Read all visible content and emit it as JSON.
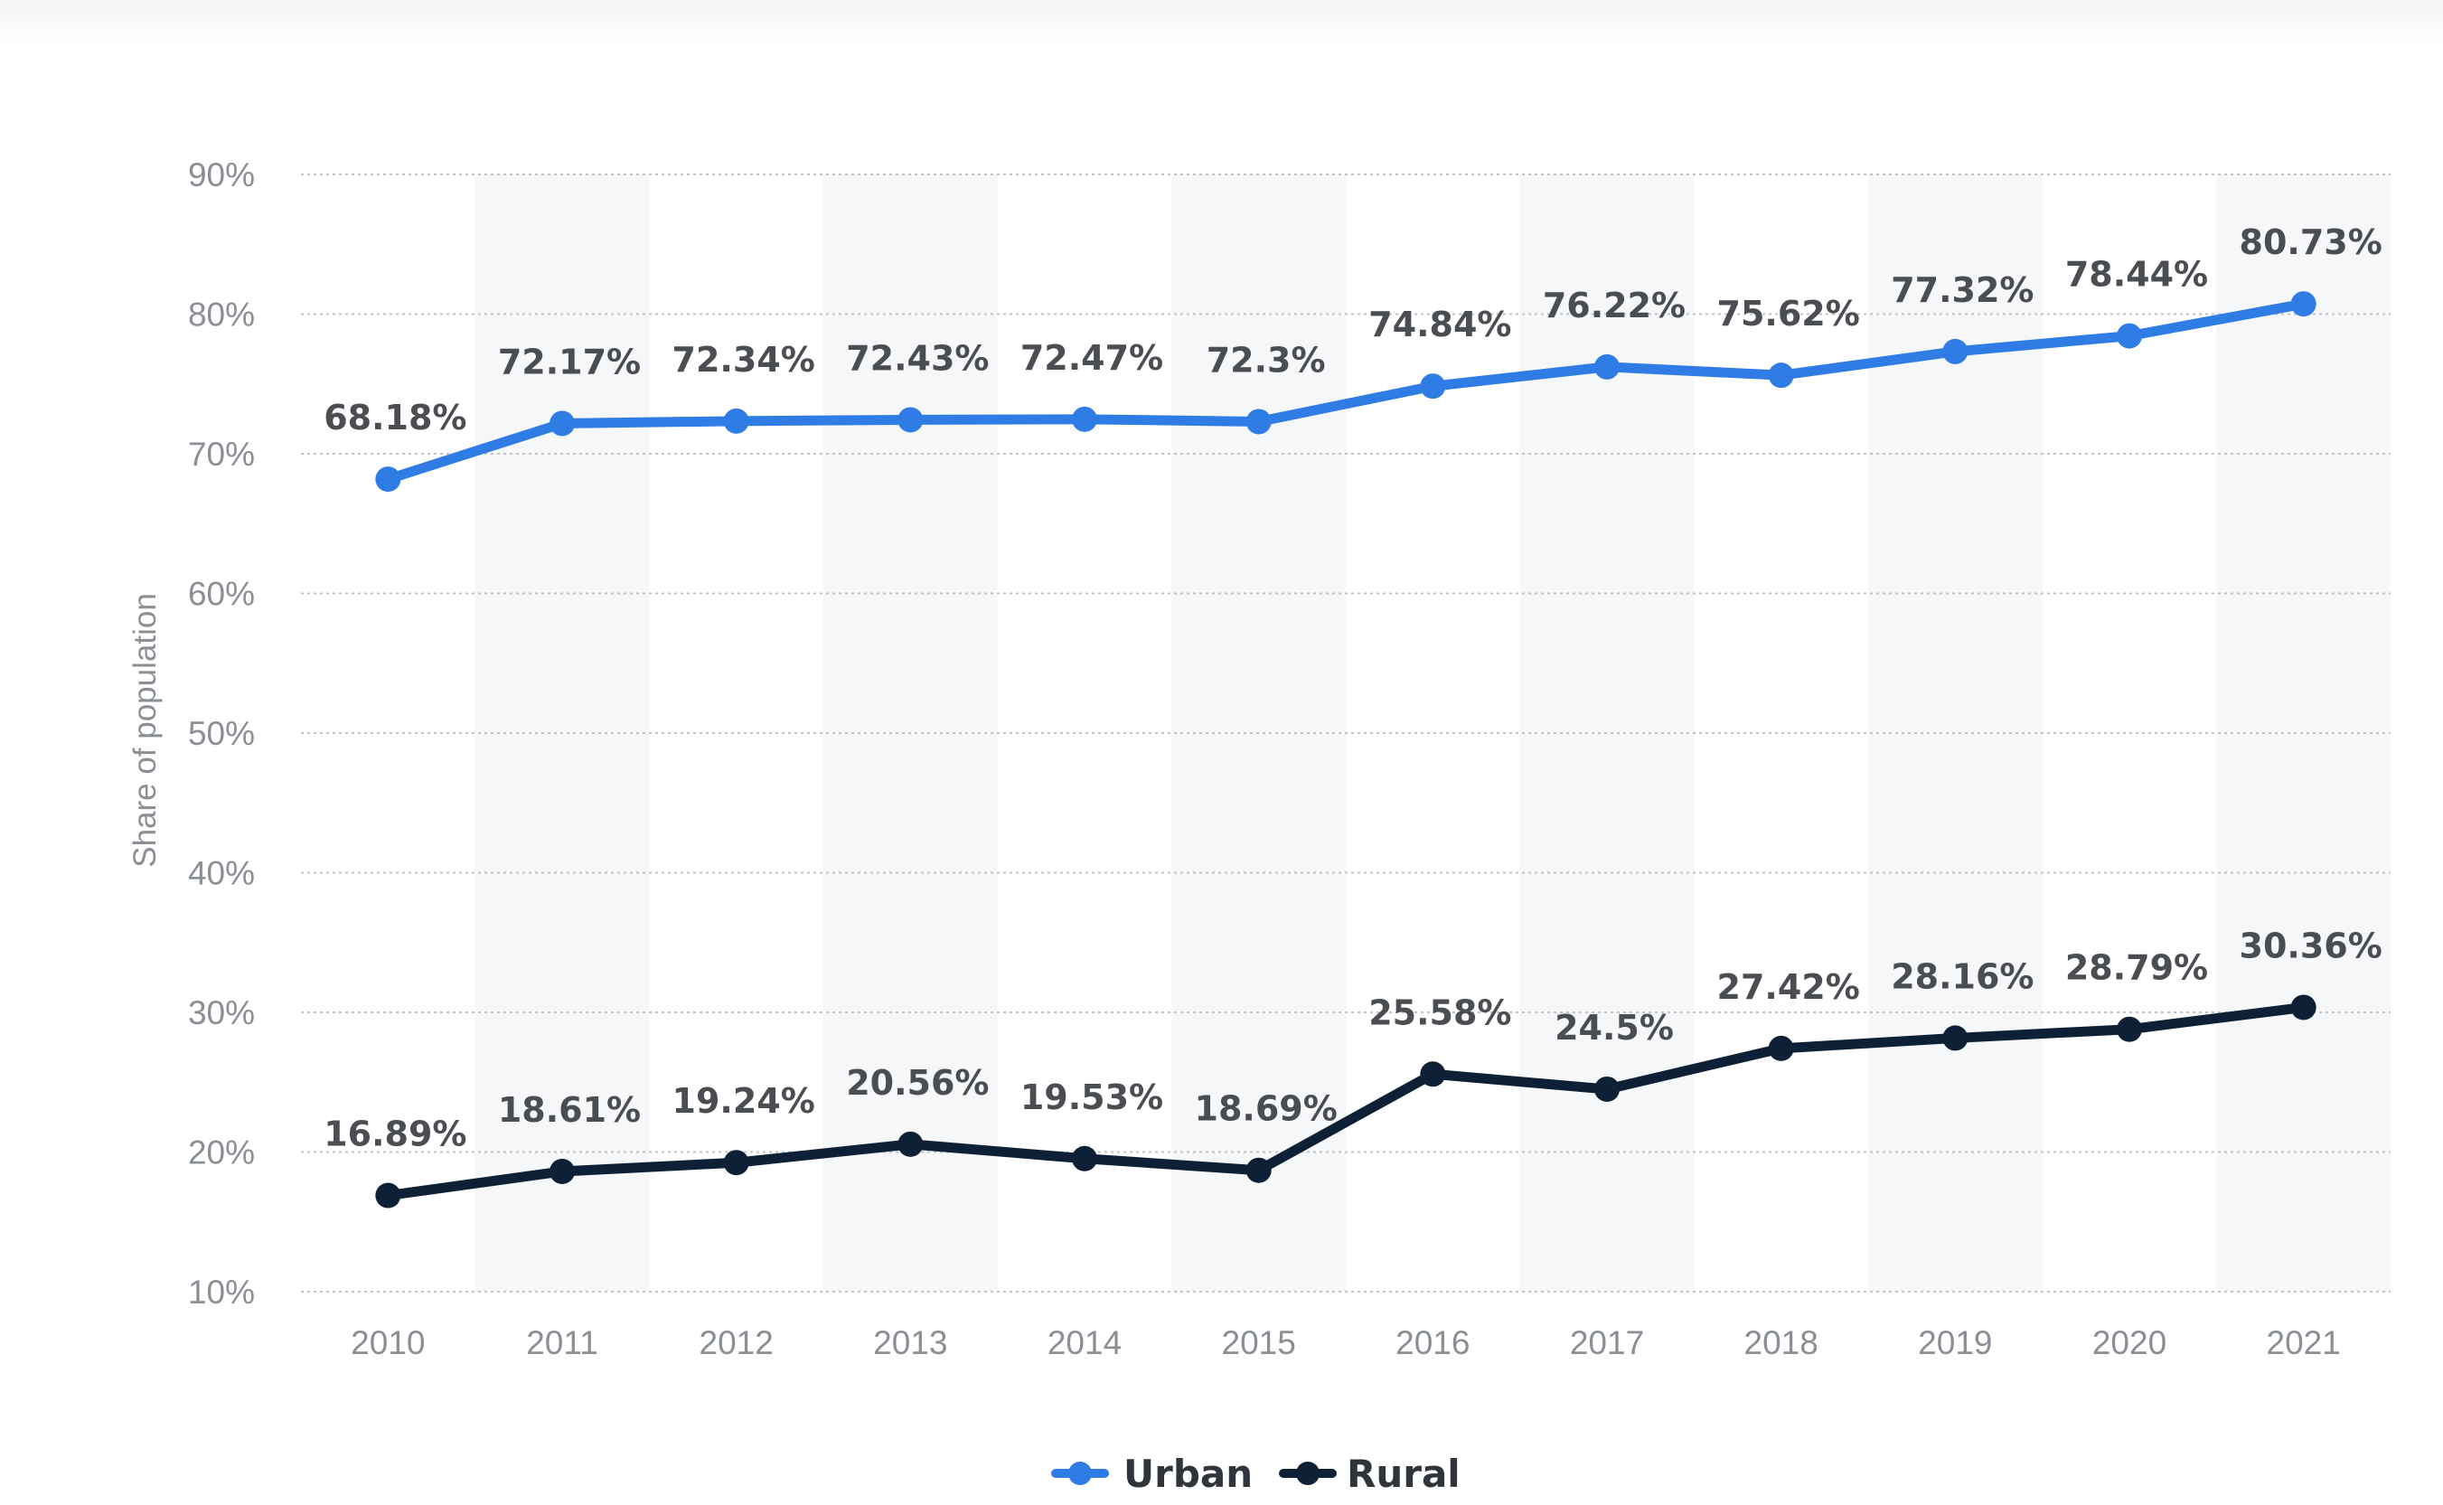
{
  "chart_data": {
    "type": "line",
    "title": "",
    "xlabel": "",
    "ylabel": "Share of population",
    "ylim": [
      10,
      90
    ],
    "yticks": [
      10,
      20,
      30,
      40,
      50,
      60,
      70,
      80,
      90
    ],
    "ytick_labels": [
      "10%",
      "20%",
      "30%",
      "40%",
      "50%",
      "60%",
      "70%",
      "80%",
      "90%"
    ],
    "categories": [
      "2010",
      "2011",
      "2012",
      "2013",
      "2014",
      "2015",
      "2016",
      "2017",
      "2018",
      "2019",
      "2020",
      "2021"
    ],
    "grid": true,
    "legend_position": "bottom-center",
    "series": [
      {
        "name": "Urban",
        "color": "#2f7ce5",
        "values": [
          68.18,
          72.17,
          72.34,
          72.43,
          72.47,
          72.3,
          74.84,
          76.22,
          75.62,
          77.32,
          78.44,
          80.73
        ],
        "labels": [
          "68.18%",
          "72.17%",
          "72.34%",
          "72.43%",
          "72.47%",
          "72.3%",
          "74.84%",
          "76.22%",
          "75.62%",
          "77.32%",
          "78.44%",
          "80.73%"
        ]
      },
      {
        "name": "Rural",
        "color": "#0e2035",
        "values": [
          16.89,
          18.61,
          19.24,
          20.56,
          19.53,
          18.69,
          25.58,
          24.5,
          27.42,
          28.16,
          28.79,
          30.36
        ],
        "labels": [
          "16.89%",
          "18.61%",
          "19.24%",
          "20.56%",
          "19.53%",
          "18.69%",
          "25.58%",
          "24.5%",
          "27.42%",
          "28.16%",
          "28.79%",
          "30.36%"
        ]
      }
    ]
  }
}
